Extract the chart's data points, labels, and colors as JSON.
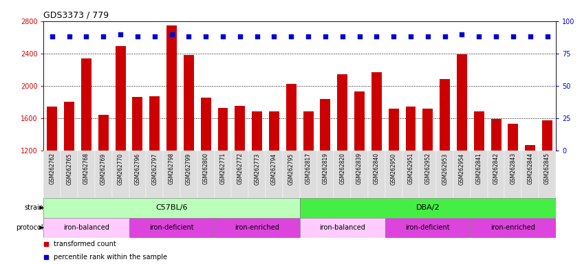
{
  "title": "GDS3373 / 779",
  "samples": [
    "GSM262762",
    "GSM262765",
    "GSM262768",
    "GSM262769",
    "GSM262770",
    "GSM262796",
    "GSM262797",
    "GSM262798",
    "GSM262799",
    "GSM262800",
    "GSM262771",
    "GSM262772",
    "GSM262773",
    "GSM262794",
    "GSM262795",
    "GSM262817",
    "GSM262819",
    "GSM262820",
    "GSM262839",
    "GSM262840",
    "GSM262950",
    "GSM262951",
    "GSM262952",
    "GSM262953",
    "GSM262954",
    "GSM262841",
    "GSM262842",
    "GSM262843",
    "GSM262844",
    "GSM262845"
  ],
  "bar_values": [
    1740,
    1800,
    2340,
    1640,
    2490,
    1860,
    1870,
    2750,
    2380,
    1850,
    1730,
    1750,
    1680,
    1680,
    2020,
    1680,
    1840,
    2140,
    1930,
    2170,
    1720,
    1740,
    1720,
    2080,
    2390,
    1680,
    1590,
    1530,
    1270,
    1570
  ],
  "percentile_values": [
    88,
    88,
    88,
    88,
    90,
    88,
    88,
    90,
    88,
    88,
    88,
    88,
    88,
    88,
    88,
    88,
    88,
    88,
    88,
    88,
    88,
    88,
    88,
    88,
    90,
    88,
    88,
    88,
    88,
    88
  ],
  "bar_color": "#cc0000",
  "percentile_color": "#0000cc",
  "ylim_left": [
    1200,
    2800
  ],
  "ylim_right": [
    0,
    100
  ],
  "yticks_left": [
    1200,
    1600,
    2000,
    2400,
    2800
  ],
  "yticks_right": [
    0,
    25,
    50,
    75,
    100
  ],
  "grid_values": [
    1600,
    2000,
    2400
  ],
  "strain_groups": [
    {
      "label": "C57BL/6",
      "start": 0,
      "end": 15,
      "color": "#bbffbb"
    },
    {
      "label": "DBA/2",
      "start": 15,
      "end": 30,
      "color": "#44ee44"
    }
  ],
  "protocol_groups": [
    {
      "label": "iron-balanced",
      "start": 0,
      "end": 5,
      "color": "#ffccff"
    },
    {
      "label": "iron-deficient",
      "start": 5,
      "end": 10,
      "color": "#dd44dd"
    },
    {
      "label": "iron-enriched",
      "start": 10,
      "end": 15,
      "color": "#dd44dd"
    },
    {
      "label": "iron-balanced",
      "start": 15,
      "end": 20,
      "color": "#ffccff"
    },
    {
      "label": "iron-deficient",
      "start": 20,
      "end": 25,
      "color": "#dd44dd"
    },
    {
      "label": "iron-enriched",
      "start": 25,
      "end": 30,
      "color": "#dd44dd"
    }
  ],
  "legend_items": [
    {
      "label": "transformed count",
      "color": "#cc0000"
    },
    {
      "label": "percentile rank within the sample",
      "color": "#0000cc"
    }
  ],
  "bar_width": 0.6,
  "axis_color_left": "#cc0000",
  "axis_color_right": "#0000cc",
  "tick_bg_color": "#dddddd"
}
